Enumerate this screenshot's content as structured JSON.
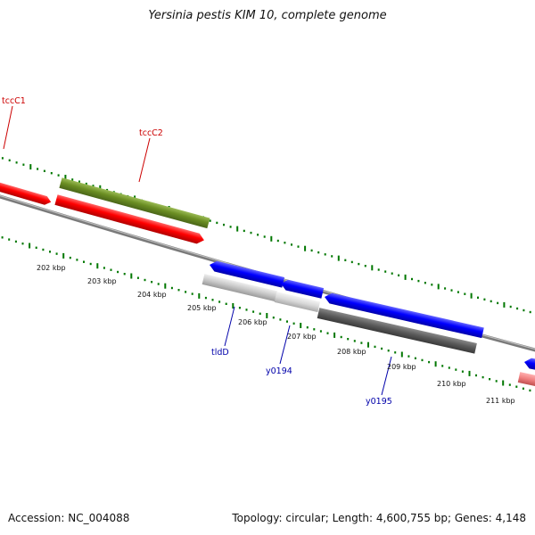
{
  "title": "Yersinia pestis KIM 10, complete genome",
  "footer": {
    "accession": "Accession: NC_004088",
    "summary": "Topology: circular; Length: 4,600,755 bp; Genes: 4,148"
  },
  "colors": {
    "red": "#ff0000",
    "olive": "#6b8e23",
    "blue": "#0000ff",
    "lightgray": "#c8c8c8",
    "darkgray": "#5a5a5a",
    "pink": "#f08080",
    "tick_green": "#007700",
    "label_red": "#cc0000",
    "label_blue": "#0000aa"
  },
  "gene_labels": [
    {
      "id": "tccC1",
      "text": "tccC1",
      "color": "red"
    },
    {
      "id": "tccC2",
      "text": "tccC2",
      "color": "red"
    },
    {
      "id": "tldD",
      "text": "tldD",
      "color": "blue"
    },
    {
      "id": "y0194",
      "text": "y0194",
      "color": "blue"
    },
    {
      "id": "y0195",
      "text": "y0195",
      "color": "blue"
    }
  ],
  "kbp_labels": [
    "202 kbp",
    "203 kbp",
    "204 kbp",
    "205 kbp",
    "206 kbp",
    "207 kbp",
    "208 kbp",
    "209 kbp",
    "210 kbp",
    "211 kbp"
  ]
}
